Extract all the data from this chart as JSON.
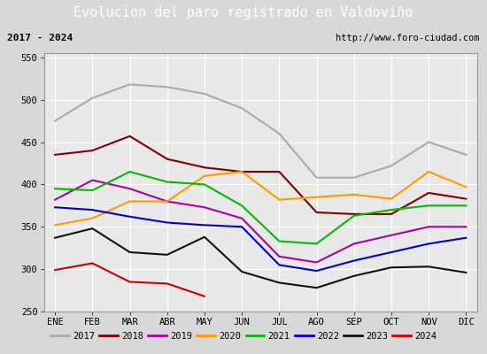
{
  "title": "Evolucion del paro registrado en Valdoviño",
  "subtitle_left": "2017 - 2024",
  "subtitle_right": "http://www.foro-ciudad.com",
  "months": [
    "ENE",
    "FEB",
    "MAR",
    "ABR",
    "MAY",
    "JUN",
    "JUL",
    "AGO",
    "SEP",
    "OCT",
    "NOV",
    "DIC"
  ],
  "ylim": [
    250,
    555
  ],
  "yticks": [
    250,
    300,
    350,
    400,
    450,
    500,
    550
  ],
  "series": {
    "2017": {
      "color": "#aaaaaa",
      "data": [
        475,
        502,
        518,
        515,
        507,
        490,
        460,
        408,
        408,
        422,
        450,
        435
      ]
    },
    "2018": {
      "color": "#800000",
      "data": [
        435,
        440,
        457,
        430,
        420,
        415,
        415,
        367,
        365,
        365,
        390,
        383
      ]
    },
    "2019": {
      "color": "#aa00aa",
      "data": [
        382,
        405,
        395,
        380,
        373,
        360,
        315,
        308,
        330,
        340,
        350,
        350
      ]
    },
    "2020": {
      "color": "#ff9900",
      "data": [
        352,
        360,
        380,
        380,
        410,
        415,
        382,
        385,
        388,
        383,
        415,
        397
      ]
    },
    "2021": {
      "color": "#00bb00",
      "data": [
        395,
        393,
        415,
        403,
        400,
        375,
        333,
        330,
        363,
        370,
        375,
        375
      ]
    },
    "2022": {
      "color": "#0000cc",
      "data": [
        373,
        370,
        362,
        355,
        352,
        350,
        305,
        298,
        310,
        320,
        330,
        337
      ]
    },
    "2023": {
      "color": "#111111",
      "data": [
        337,
        348,
        320,
        317,
        338,
        297,
        284,
        278,
        292,
        302,
        303,
        296
      ]
    },
    "2024": {
      "color": "#cc0000",
      "data": [
        299,
        307,
        285,
        283,
        268,
        null,
        null,
        null,
        null,
        null,
        null,
        null
      ]
    }
  },
  "background_color": "#d8d8d8",
  "plot_bg_color": "#e8e8e8",
  "title_bg_color": "#4f81bd",
  "title_color": "#ffffff",
  "info_bg_color": "#e0e0e0",
  "border_color": "#4f81bd",
  "grid_color": "#ffffff"
}
